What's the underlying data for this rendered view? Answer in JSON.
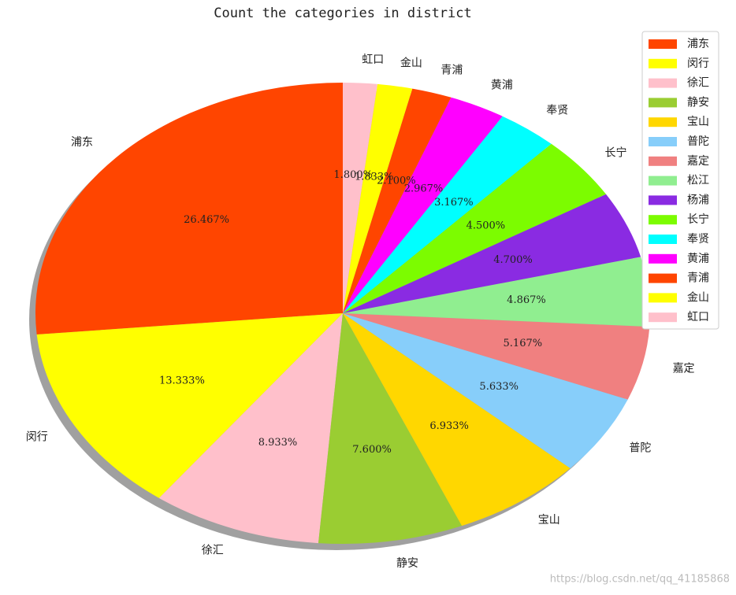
{
  "chart_data": {
    "type": "pie",
    "title": "Count the categories in district",
    "categories": [
      "浦东",
      "闵行",
      "徐汇",
      "静安",
      "宝山",
      "普陀",
      "嘉定",
      "松江",
      "杨浦",
      "长宁",
      "奉贤",
      "黄浦",
      "青浦",
      "金山",
      "虹口"
    ],
    "values": [
      26.467,
      13.333,
      8.933,
      7.6,
      6.933,
      5.633,
      5.167,
      4.867,
      4.7,
      4.5,
      3.167,
      2.967,
      2.1,
      1.833,
      1.8
    ],
    "value_labels": [
      "26.467%",
      "13.333%",
      "8.933%",
      "7.600%",
      "6.933%",
      "5.633%",
      "5.167%",
      "4.867%",
      "4.700%",
      "4.500%",
      "3.167%",
      "2.967%",
      "2.100%",
      "1.833%",
      "1.800%"
    ],
    "colors": [
      "#ff4500",
      "#ffff00",
      "#ffc0cb",
      "#9acd32",
      "#ffd700",
      "#87cefa",
      "#f08080",
      "#90ee90",
      "#8a2be2",
      "#7cfc00",
      "#00ffff",
      "#ff00ff",
      "#ff4500",
      "#ffff00",
      "#ffc0cb"
    ],
    "legend": "upper right",
    "shadow": true,
    "watermark": "https://blog.csdn.net/qq_41185868"
  }
}
